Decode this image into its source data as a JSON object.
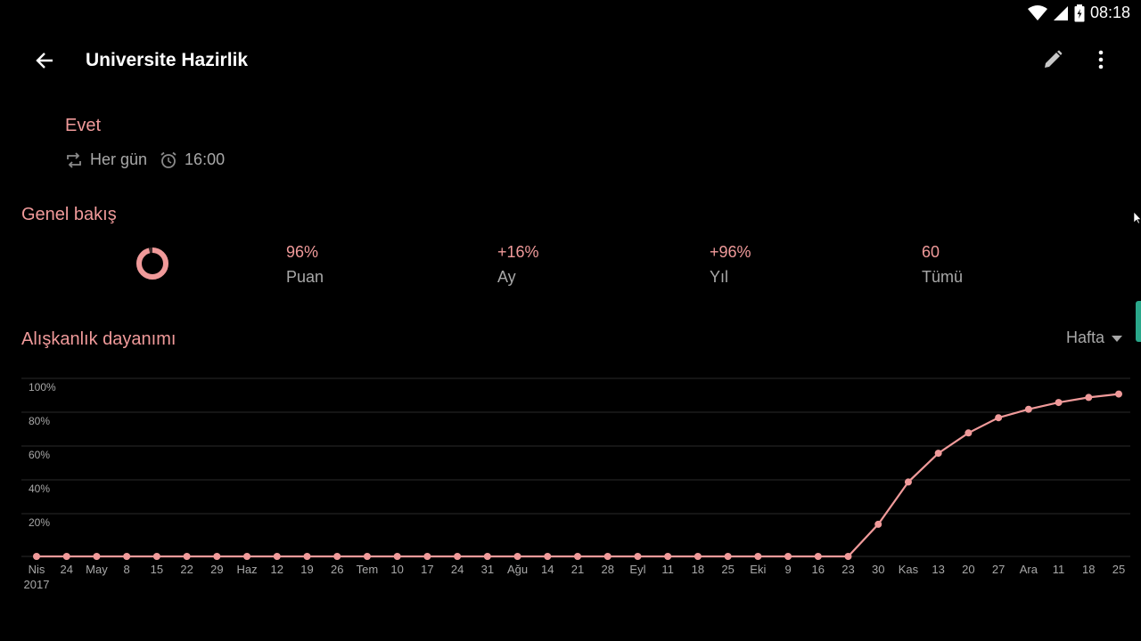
{
  "status_bar": {
    "time": "08:18"
  },
  "app_bar": {
    "title": "Universite Hazirlik"
  },
  "habit": {
    "question": "Evet",
    "frequency": "Her gün",
    "reminder": "16:00"
  },
  "overview": {
    "title": "Genel bakış",
    "score_fraction": 0.96,
    "stats": [
      {
        "value": "96%",
        "label": "Puan"
      },
      {
        "value": "+16%",
        "label": "Ay"
      },
      {
        "value": "+96%",
        "label": "Yıl"
      },
      {
        "value": "60",
        "label": "Tümü"
      }
    ]
  },
  "strength": {
    "title": "Alışkanlık dayanımı",
    "period": "Hafta"
  },
  "colors": {
    "accent": "#f09a9a",
    "muted": "#a8a8a8",
    "background": "#000000",
    "grid": "#2a2a2a"
  },
  "chart_data": {
    "type": "line",
    "ylim": [
      0,
      100
    ],
    "y_ticks": [
      "20%",
      "40%",
      "60%",
      "80%",
      "100%"
    ],
    "x_labels": [
      "Nis",
      "24",
      "May",
      "8",
      "15",
      "22",
      "29",
      "Haz",
      "12",
      "19",
      "26",
      "Tem",
      "10",
      "17",
      "24",
      "31",
      "Ağu",
      "14",
      "21",
      "28",
      "Eyl",
      "11",
      "18",
      "25",
      "Eki",
      "9",
      "16",
      "23",
      "30",
      "Kas",
      "13",
      "20",
      "27",
      "Ara",
      "11",
      "18",
      "25"
    ],
    "x_sublabel": "2017",
    "values": [
      0,
      0,
      0,
      0,
      0,
      0,
      0,
      0,
      0,
      0,
      0,
      0,
      0,
      0,
      0,
      0,
      0,
      0,
      0,
      0,
      0,
      0,
      0,
      0,
      0,
      0,
      0,
      0,
      19,
      44,
      61,
      73,
      82,
      87,
      91,
      94,
      96
    ]
  }
}
